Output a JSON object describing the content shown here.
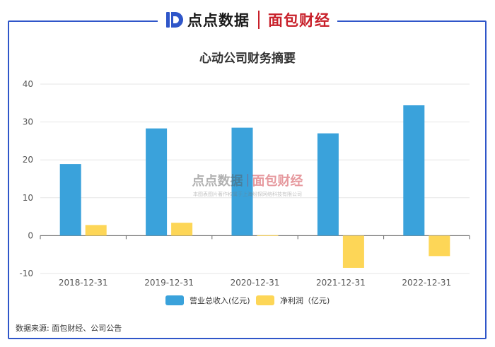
{
  "header": {
    "brand_a": "点点数据",
    "brand_b": "面包财经"
  },
  "watermark": {
    "brand_a": "点点数据",
    "brand_b": "面包财经",
    "note": "本图表图片著作权属于上海纷探网络科技有限公司"
  },
  "source": "数据来源: 面包财经、公司公告",
  "colors": {
    "frame": "#2f56c9",
    "revenue": "#3aa2db",
    "profit": "#fdd657",
    "brand_red": "#c8202a"
  },
  "chart_data": {
    "type": "bar",
    "title": "心动公司财务摘要",
    "categories": [
      "2018-12-31",
      "2019-12-31",
      "2020-12-31",
      "2021-12-31",
      "2022-12-31"
    ],
    "series": [
      {
        "name": "营业总收入(亿元)",
        "values": [
          18.9,
          28.3,
          28.5,
          27.0,
          34.4
        ]
      },
      {
        "name": "净利润（亿元)",
        "values": [
          2.8,
          3.4,
          0.1,
          -8.5,
          -5.4
        ]
      }
    ],
    "ylim": [
      -10,
      40
    ],
    "yticks": [
      -10,
      0,
      10,
      20,
      30,
      40
    ],
    "grid": true,
    "legend": "bottom"
  }
}
